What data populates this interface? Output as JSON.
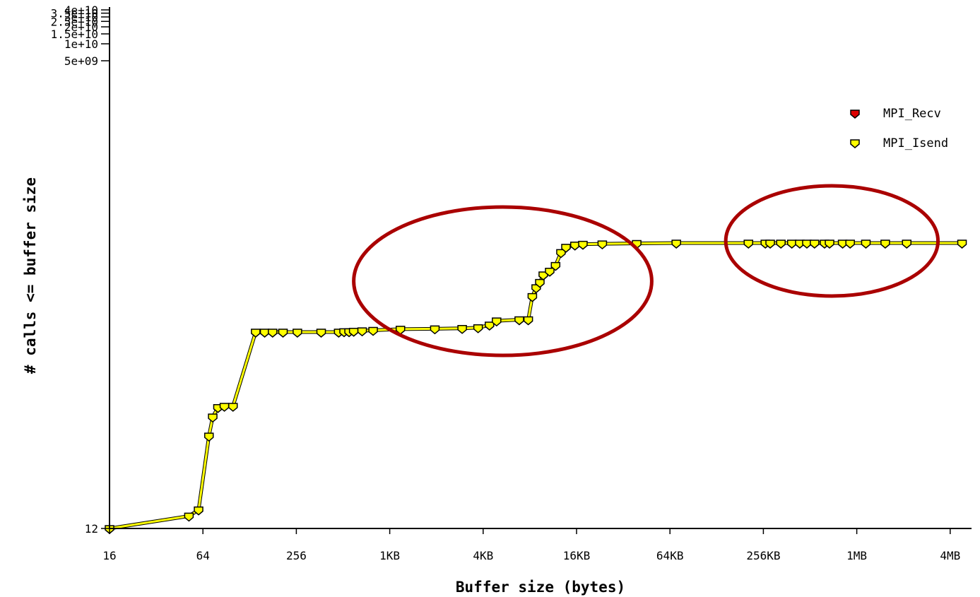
{
  "colors": {
    "recv": "#dd0000",
    "isend": "#ffff00",
    "line": "#ffff00",
    "annotation": "#aa0000",
    "axis": "#000000"
  },
  "chart_data": {
    "type": "line",
    "title": "",
    "xlabel": "Buffer size (bytes)",
    "ylabel": "# calls <= buffer size",
    "x_scale": "log2",
    "y_scale": "log",
    "x_ticks": [
      {
        "value": 16,
        "label": "16"
      },
      {
        "value": 64,
        "label": "64"
      },
      {
        "value": 256,
        "label": "256"
      },
      {
        "value": 1024,
        "label": "1KB"
      },
      {
        "value": 4096,
        "label": "4KB"
      },
      {
        "value": 16384,
        "label": "16KB"
      },
      {
        "value": 65536,
        "label": "64KB"
      },
      {
        "value": 262144,
        "label": "256KB"
      },
      {
        "value": 1048576,
        "label": "1MB"
      },
      {
        "value": 4194304,
        "label": "4MB"
      }
    ],
    "y_ticks": [
      {
        "value": 12,
        "label": "12"
      },
      {
        "value": 5000000000,
        "label": "5e+09"
      },
      {
        "value": 10000000000,
        "label": "1e+10"
      },
      {
        "value": 15000000000,
        "label": "1.5e+10"
      },
      {
        "value": 20000000000,
        "label": "2e+10"
      },
      {
        "value": 25000000000,
        "label": "2.5e+10"
      },
      {
        "value": 30000000000,
        "label": "3e+10"
      },
      {
        "value": 35000000000,
        "label": "3.5e+10"
      },
      {
        "value": 40000000000,
        "label": "4e+10"
      }
    ],
    "xlim": [
      15,
      5000000
    ],
    "ylim": [
      12,
      40000000000
    ],
    "legend_position": "top-right",
    "series": [
      {
        "name": "MPI_Recv",
        "color": "#dd0000",
        "x": [],
        "y": []
      },
      {
        "name": "MPI_Isend",
        "color": "#ffff00",
        "x": [
          16,
          52,
          60,
          70,
          74,
          80,
          88,
          100,
          140,
          160,
          180,
          210,
          260,
          370,
          480,
          520,
          560,
          600,
          680,
          800,
          1200,
          2000,
          3000,
          3800,
          4500,
          5000,
          7000,
          8000,
          8500,
          9000,
          9500,
          10000,
          11000,
          12000,
          13000,
          14000,
          16000,
          18000,
          24000,
          40000,
          72000,
          210000,
          270000,
          290000,
          340000,
          400000,
          450000,
          500000,
          560000,
          650000,
          700000,
          850000,
          950000,
          1200000,
          1600000,
          2200000,
          5000000
        ],
        "y": [
          12,
          20,
          28,
          1500,
          4200,
          7000,
          7500,
          7500,
          410000,
          410000,
          410000,
          410000,
          410000,
          410000,
          410000,
          420000,
          420000,
          430000,
          440000,
          450000,
          480000,
          490000,
          500000,
          520000,
          600000,
          750000,
          800000,
          800000,
          2800000,
          4500000,
          6000000,
          9000000,
          11000000,
          15000000,
          30000000,
          40000000,
          45000000,
          47000000,
          48000000,
          49000000,
          50000000,
          50000000,
          50000000,
          50000000,
          50000000,
          50000000,
          50000000,
          50000000,
          50000000,
          50000000,
          50000000,
          50000000,
          50000000,
          50000000,
          50000000,
          50000000,
          50000000
        ]
      }
    ],
    "annotations": [
      {
        "type": "ellipse",
        "note": "",
        "x_range": [
          600,
          50000
        ]
      },
      {
        "type": "ellipse",
        "note": "",
        "x_range": [
          150000,
          3500000
        ]
      }
    ]
  }
}
